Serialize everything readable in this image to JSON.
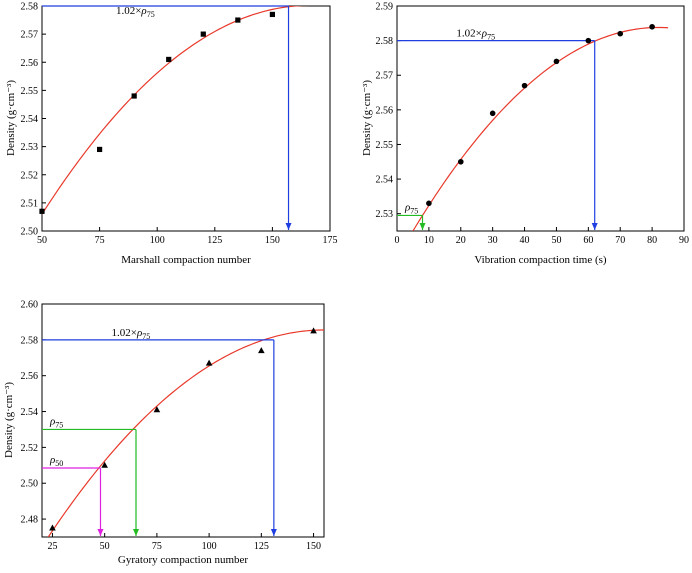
{
  "chart_data": [
    {
      "type": "scatter",
      "xlabel": "Marshall compaction number",
      "ylabel": "Density (g·cm⁻³)",
      "xlim": [
        50,
        175
      ],
      "ylim": [
        2.5,
        2.58
      ],
      "xticks": [
        "50",
        "75",
        "100",
        "125",
        "150",
        "175"
      ],
      "yticks": [
        "2.50",
        "2.51",
        "2.52",
        "2.53",
        "2.54",
        "2.55",
        "2.56",
        "2.57",
        "2.58"
      ],
      "marker": "square",
      "points": [
        {
          "x": 50,
          "y": 2.507
        },
        {
          "x": 75,
          "y": 2.529
        },
        {
          "x": 90,
          "y": 2.548
        },
        {
          "x": 105,
          "y": 2.561
        },
        {
          "x": 120,
          "y": 2.57
        },
        {
          "x": 135,
          "y": 2.575
        },
        {
          "x": 150,
          "y": 2.577
        }
      ],
      "fit_curve": {
        "color": "#e8392b",
        "x_range": [
          50,
          166
        ],
        "vertex_x": 166,
        "vertex_y": 2.5802,
        "start_y": 2.506
      },
      "annotations": [
        {
          "label": "1.02×",
          "symbol": "ρ",
          "sub": "75",
          "color": "#1f3fe0",
          "x": 157,
          "y": 2.58
        }
      ]
    },
    {
      "type": "scatter",
      "xlabel": "Vibration compaction  time (s)",
      "ylabel": "Density (g·cm⁻³)",
      "xlim": [
        0,
        90
      ],
      "ylim": [
        2.525,
        2.59
      ],
      "xticks": [
        "0",
        "10",
        "20",
        "30",
        "40",
        "50",
        "60",
        "70",
        "80",
        "90"
      ],
      "yticks": [
        "2.53",
        "2.54",
        "2.55",
        "2.56",
        "2.57",
        "2.58",
        "2.59"
      ],
      "marker": "circle",
      "points": [
        {
          "x": 10,
          "y": 2.533
        },
        {
          "x": 20,
          "y": 2.545
        },
        {
          "x": 30,
          "y": 2.559
        },
        {
          "x": 40,
          "y": 2.567
        },
        {
          "x": 50,
          "y": 2.574
        },
        {
          "x": 60,
          "y": 2.58
        },
        {
          "x": 70,
          "y": 2.582
        },
        {
          "x": 80,
          "y": 2.584
        }
      ],
      "fit_curve": {
        "color": "#e8392b",
        "x_range": [
          5,
          85
        ],
        "vertex_x": 82,
        "vertex_y": 2.5838,
        "start_y": 2.525
      },
      "annotations": [
        {
          "label": "1.02×",
          "symbol": "ρ",
          "sub": "75",
          "color": "#1f3fe0",
          "x": 62,
          "y": 2.58
        },
        {
          "label": "",
          "symbol": "ρ",
          "sub": "75",
          "color": "#22bb22",
          "x": 8,
          "y": 2.5295
        }
      ]
    },
    {
      "type": "scatter",
      "xlabel": "Gyratory compaction number",
      "ylabel": "Density (g·cm⁻³)",
      "xlim": [
        20,
        155
      ],
      "ylim": [
        2.47,
        2.6
      ],
      "xticks": [
        "25",
        "50",
        "75",
        "100",
        "125",
        "150"
      ],
      "yticks": [
        "2.48",
        "2.50",
        "2.52",
        "2.54",
        "2.56",
        "2.58",
        "2.60"
      ],
      "marker": "triangle",
      "points": [
        {
          "x": 25,
          "y": 2.475
        },
        {
          "x": 50,
          "y": 2.51
        },
        {
          "x": 75,
          "y": 2.541
        },
        {
          "x": 100,
          "y": 2.567
        },
        {
          "x": 125,
          "y": 2.574
        },
        {
          "x": 150,
          "y": 2.585
        }
      ],
      "fit_curve": {
        "color": "#e8392b",
        "x_range": [
          23,
          155
        ],
        "vertex_x": 155,
        "vertex_y": 2.5855,
        "start_y": 2.47
      },
      "annotations": [
        {
          "label": "1.02×",
          "symbol": "ρ",
          "sub": "75",
          "color": "#1f3fe0",
          "x": 131,
          "y": 2.58
        },
        {
          "label": "",
          "symbol": "ρ",
          "sub": "75",
          "color": "#22bb22",
          "x": 65,
          "y": 2.53
        },
        {
          "label": "",
          "symbol": "ρ",
          "sub": "50",
          "color": "#e020e0",
          "x": 48,
          "y": 2.5085
        }
      ]
    }
  ]
}
